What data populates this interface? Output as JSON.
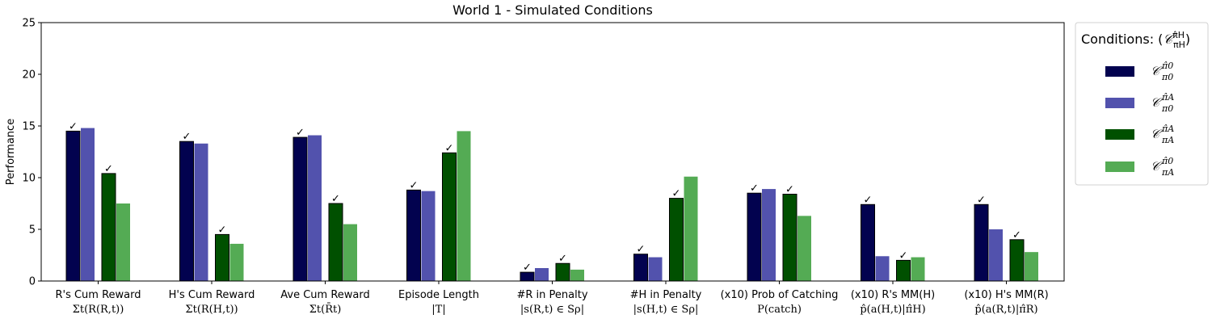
{
  "chart_data": {
    "type": "bar",
    "title": "World 1 - Simulated Conditions",
    "ylabel": "Performance",
    "ylim": [
      0,
      25
    ],
    "yticks": [
      0,
      5,
      10,
      15,
      20,
      25
    ],
    "grid": false,
    "legend_position": "outside-right",
    "legend_title": "Conditions: (𝒞 π̂H / πH)",
    "categories": [
      {
        "label": "R's Cum Reward",
        "formula": "Σt(R(R,t))"
      },
      {
        "label": "H's Cum Reward",
        "formula": "Σt(R(H,t))"
      },
      {
        "label": "Ave Cum Reward",
        "formula": "Σt(R̄t)"
      },
      {
        "label": "Episode Length",
        "formula": "|T|"
      },
      {
        "label": "#R in Penalty",
        "formula": "|s(R,t) ∈ Sρ|"
      },
      {
        "label": "#H in Penalty",
        "formula": "|s(H,t) ∈ Sρ|"
      },
      {
        "label": "(x10) Prob of Catching",
        "formula": "P(catch)"
      },
      {
        "label": "(x10) R's MM(H)",
        "formula": "p̂(a(H,t)|π̂H)"
      },
      {
        "label": "(x10) H's MM(R)",
        "formula": "p̂(a(R,t)|π̂R)"
      }
    ],
    "series": [
      {
        "name": "𝒞 π̂0 / π0",
        "sup": "π̂0",
        "sub": "π0",
        "color": "#02024f",
        "edge": true,
        "values": [
          14.5,
          13.5,
          13.9,
          8.8,
          0.85,
          2.6,
          8.5,
          7.4,
          7.4
        ],
        "checks": [
          true,
          true,
          true,
          true,
          true,
          true,
          true,
          true,
          true
        ]
      },
      {
        "name": "𝒞 π̂A / π0",
        "sup": "π̂A",
        "sub": "π0",
        "color": "#5252ad",
        "edge": false,
        "values": [
          14.8,
          13.3,
          14.1,
          8.7,
          1.25,
          2.3,
          8.9,
          2.4,
          5.0
        ],
        "checks": [
          false,
          false,
          false,
          false,
          false,
          false,
          false,
          false,
          false
        ]
      },
      {
        "name": "𝒞 π̂A / πA",
        "sup": "π̂A",
        "sub": "πA",
        "color": "#005000",
        "edge": true,
        "values": [
          10.4,
          4.5,
          7.5,
          12.4,
          1.7,
          8.0,
          8.4,
          2.0,
          4.0
        ],
        "checks": [
          true,
          true,
          true,
          true,
          true,
          true,
          true,
          true,
          true
        ]
      },
      {
        "name": "𝒞 π̂0 / πA",
        "sup": "π̂0",
        "sub": "πA",
        "color": "#54ab54",
        "edge": false,
        "values": [
          7.5,
          3.6,
          5.5,
          14.5,
          1.1,
          10.1,
          6.3,
          2.3,
          2.8
        ],
        "checks": [
          false,
          false,
          false,
          false,
          false,
          false,
          false,
          false,
          false
        ]
      }
    ],
    "check_mark": "✓"
  }
}
